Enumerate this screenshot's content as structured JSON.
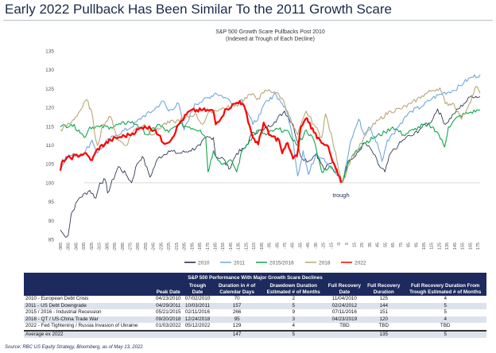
{
  "title": "Early 2022 Pullback Has Been Similar To the 2011 Growth Scare",
  "chart_data": {
    "type": "line",
    "title": "S&P 500 Growth  Scare Pullbacks Post 2010",
    "subtitle": "(Indexed at Trough of Each Decline)",
    "annotation": "trough",
    "xlabel": "",
    "ylabel": "",
    "xlim": [
      -365,
      178
    ],
    "ylim": [
      85,
      135
    ],
    "yticks": [
      85,
      90,
      95,
      100,
      105,
      110,
      115,
      120,
      125,
      130,
      135
    ],
    "xticks_start": -365,
    "xticks_end": 175,
    "xticks_step": 10,
    "reference_line": 100,
    "legend_position": "bottom",
    "series": [
      {
        "name": "2010",
        "color": "#1b2440",
        "width": 0.8,
        "points": [
          [
            -365,
            87.5
          ],
          [
            -360,
            86
          ],
          [
            -355,
            86
          ],
          [
            -351,
            91.7
          ],
          [
            -341,
            95.9
          ],
          [
            -327,
            98
          ],
          [
            -319,
            95.9
          ],
          [
            -314,
            100
          ],
          [
            -307,
            100.8
          ],
          [
            -304,
            97.3
          ],
          [
            -290,
            104.3
          ],
          [
            -280,
            102.2
          ],
          [
            -273,
            100
          ],
          [
            -266,
            105
          ],
          [
            -259,
            107
          ],
          [
            -249,
            101.5
          ],
          [
            -239,
            106.4
          ],
          [
            -225,
            108.5
          ],
          [
            -212,
            107.8
          ],
          [
            -198,
            108.5
          ],
          [
            -184,
            109.9
          ],
          [
            -177,
            112
          ],
          [
            -167,
            112
          ],
          [
            -164,
            107
          ],
          [
            -154,
            106.4
          ],
          [
            -147,
            103.6
          ],
          [
            -137,
            107.8
          ],
          [
            -126,
            109.2
          ],
          [
            -116,
            113.4
          ],
          [
            -102,
            114
          ],
          [
            -88,
            116.2
          ],
          [
            -75,
            119
          ],
          [
            -64,
            115.5
          ],
          [
            -54,
            107
          ],
          [
            -44,
            105.7
          ],
          [
            -34,
            107.8
          ],
          [
            -24,
            103.6
          ],
          [
            -13,
            105.7
          ],
          [
            -3,
            101.5
          ],
          [
            0,
            100
          ],
          [
            7,
            105.7
          ],
          [
            17,
            107
          ],
          [
            28,
            110.6
          ],
          [
            38,
            108.5
          ],
          [
            48,
            104.3
          ],
          [
            55,
            102.9
          ],
          [
            62,
            107.8
          ],
          [
            72,
            109.9
          ],
          [
            82,
            112
          ],
          [
            92,
            112.7
          ],
          [
            103,
            114.8
          ],
          [
            113,
            115.8
          ],
          [
            123,
            119.6
          ],
          [
            133,
            115.5
          ],
          [
            144,
            118.3
          ],
          [
            157,
            121
          ],
          [
            167,
            123.1
          ],
          [
            178,
            122.8
          ]
        ]
      },
      {
        "name": "2011",
        "color": "#6fa8e0",
        "width": 1.1,
        "points": [
          [
            -365,
            103.2
          ],
          [
            -358,
            107
          ],
          [
            -334,
            107.8
          ],
          [
            -324,
            111.3
          ],
          [
            -317,
            107.8
          ],
          [
            -307,
            110.6
          ],
          [
            -293,
            112.7
          ],
          [
            -273,
            114.8
          ],
          [
            -259,
            117.5
          ],
          [
            -246,
            119
          ],
          [
            -232,
            121.7
          ],
          [
            -225,
            119
          ],
          [
            -212,
            121
          ],
          [
            -205,
            114
          ],
          [
            -191,
            121
          ],
          [
            -181,
            121.7
          ],
          [
            -164,
            123.8
          ],
          [
            -150,
            122.4
          ],
          [
            -140,
            121
          ],
          [
            -130,
            122.1
          ],
          [
            -116,
            115.5
          ],
          [
            -106,
            118.3
          ],
          [
            -99,
            121.7
          ],
          [
            -95,
            121.7
          ],
          [
            -88,
            123.8
          ],
          [
            -78,
            121
          ],
          [
            -71,
            118.3
          ],
          [
            -64,
            111.3
          ],
          [
            -58,
            101.8
          ],
          [
            -51,
            108.5
          ],
          [
            -44,
            102.2
          ],
          [
            -34,
            107.8
          ],
          [
            -24,
            106.4
          ],
          [
            -13,
            103.6
          ],
          [
            -3,
            100.8
          ],
          [
            0,
            100
          ],
          [
            11,
            111.3
          ],
          [
            21,
            116.9
          ],
          [
            28,
            112.7
          ],
          [
            34,
            114.8
          ],
          [
            45,
            110.6
          ],
          [
            51,
            105.7
          ],
          [
            58,
            111.3
          ],
          [
            69,
            114
          ],
          [
            79,
            116.9
          ],
          [
            89,
            119
          ],
          [
            103,
            120.3
          ],
          [
            116,
            122.4
          ],
          [
            130,
            123.8
          ],
          [
            144,
            124.5
          ],
          [
            157,
            126.6
          ],
          [
            167,
            128
          ],
          [
            178,
            128.7
          ]
        ]
      },
      {
        "name": "2015/2016",
        "color": "#12a44a",
        "width": 1.1,
        "points": [
          [
            -365,
            114.8
          ],
          [
            -351,
            115.5
          ],
          [
            -341,
            114
          ],
          [
            -334,
            112
          ],
          [
            -327,
            114.8
          ],
          [
            -314,
            114.8
          ],
          [
            -300,
            114.8
          ],
          [
            -287,
            115.5
          ],
          [
            -276,
            116.2
          ],
          [
            -266,
            115.5
          ],
          [
            -252,
            112.7
          ],
          [
            -239,
            115.5
          ],
          [
            -225,
            113.4
          ],
          [
            -212,
            115.5
          ],
          [
            -198,
            114.8
          ],
          [
            -184,
            114
          ],
          [
            -177,
            112
          ],
          [
            -174,
            102.9
          ],
          [
            -167,
            108.5
          ],
          [
            -157,
            105
          ],
          [
            -143,
            105.7
          ],
          [
            -137,
            102.9
          ],
          [
            -130,
            108.5
          ],
          [
            -120,
            111.3
          ],
          [
            -109,
            114
          ],
          [
            -99,
            112.7
          ],
          [
            -88,
            114
          ],
          [
            -75,
            114
          ],
          [
            -68,
            112.7
          ],
          [
            -58,
            109.9
          ],
          [
            -47,
            114
          ],
          [
            -37,
            111.3
          ],
          [
            -27,
            102.9
          ],
          [
            -17,
            104.3
          ],
          [
            -7,
            102.9
          ],
          [
            -1,
            100
          ],
          [
            7,
            105
          ],
          [
            17,
            108.5
          ],
          [
            28,
            110.6
          ],
          [
            41,
            112
          ],
          [
            55,
            113.4
          ],
          [
            65,
            114.8
          ],
          [
            79,
            112.7
          ],
          [
            92,
            114
          ],
          [
            106,
            115.5
          ],
          [
            116,
            114.8
          ],
          [
            123,
            113.4
          ],
          [
            132,
            109.5
          ],
          [
            137,
            114.8
          ],
          [
            150,
            117.6
          ],
          [
            164,
            118.6
          ],
          [
            178,
            119.3
          ]
        ]
      },
      {
        "name": "2018",
        "color": "#b9a77a",
        "width": 1.1,
        "points": [
          [
            -365,
            114
          ],
          [
            -351,
            116
          ],
          [
            -338,
            119.6
          ],
          [
            -331,
            122.1
          ],
          [
            -324,
            118.3
          ],
          [
            -321,
            113.4
          ],
          [
            -317,
            109.9
          ],
          [
            -310,
            115.5
          ],
          [
            -300,
            117.5
          ],
          [
            -290,
            111.3
          ],
          [
            -280,
            109.9
          ],
          [
            -270,
            114
          ],
          [
            -256,
            115.5
          ],
          [
            -246,
            112.7
          ],
          [
            -232,
            115.5
          ],
          [
            -218,
            116.2
          ],
          [
            -205,
            116.9
          ],
          [
            -191,
            118.3
          ],
          [
            -181,
            115.5
          ],
          [
            -171,
            119
          ],
          [
            -157,
            119.6
          ],
          [
            -140,
            120.3
          ],
          [
            -130,
            121.7
          ],
          [
            -120,
            123.5
          ],
          [
            -109,
            122.4
          ],
          [
            -99,
            124.5
          ],
          [
            -102,
            123.8
          ],
          [
            -88,
            124.2
          ],
          [
            -78,
            122.4
          ],
          [
            -71,
            119
          ],
          [
            -64,
            114.8
          ],
          [
            -58,
            112.7
          ],
          [
            -47,
            119
          ],
          [
            -37,
            115.5
          ],
          [
            -27,
            112
          ],
          [
            -22,
            118.3
          ],
          [
            -13,
            111.3
          ],
          [
            -7,
            105.7
          ],
          [
            0,
            100
          ],
          [
            11,
            106.4
          ],
          [
            21,
            109.2
          ],
          [
            34,
            114
          ],
          [
            48,
            116.9
          ],
          [
            62,
            119
          ],
          [
            75,
            119.6
          ],
          [
            89,
            121
          ],
          [
            103,
            123.1
          ],
          [
            116,
            124.5
          ],
          [
            126,
            125.2
          ],
          [
            133,
            121
          ],
          [
            144,
            121
          ],
          [
            154,
            116.9
          ],
          [
            164,
            121
          ],
          [
            173,
            125.6
          ],
          [
            178,
            123.8
          ]
        ]
      },
      {
        "name": "2022",
        "color": "#ff0000",
        "width": 2.2,
        "points": [
          [
            -365,
            103.2
          ],
          [
            -362,
            106
          ],
          [
            -334,
            107.8
          ],
          [
            -324,
            106
          ],
          [
            -317,
            109
          ],
          [
            -300,
            111.3
          ],
          [
            -290,
            112
          ],
          [
            -276,
            112.7
          ],
          [
            -256,
            115
          ],
          [
            -242,
            114
          ],
          [
            -232,
            110.6
          ],
          [
            -222,
            111.3
          ],
          [
            -212,
            115.5
          ],
          [
            -198,
            119
          ],
          [
            -181,
            119.3
          ],
          [
            -167,
            119
          ],
          [
            -164,
            115.5
          ],
          [
            -150,
            119.6
          ],
          [
            -133,
            121.7
          ],
          [
            -126,
            119.6
          ],
          [
            -116,
            112
          ],
          [
            -109,
            110.2
          ],
          [
            -102,
            116
          ],
          [
            -95,
            112.7
          ],
          [
            -82,
            111.3
          ],
          [
            -78,
            107.8
          ],
          [
            -71,
            110.6
          ],
          [
            -64,
            106.4
          ],
          [
            -59,
            107
          ],
          [
            -54,
            114.8
          ],
          [
            -46,
            117.2
          ],
          [
            -37,
            113.4
          ],
          [
            -29,
            111.3
          ],
          [
            -20,
            110
          ],
          [
            -13,
            105.7
          ],
          [
            -7,
            102.9
          ],
          [
            -2,
            100
          ]
        ]
      }
    ]
  },
  "table": {
    "title": "S&P 500 Performance With Major Growth Scare Declines",
    "headers": [
      "",
      "Peak Date",
      "Trough Date",
      "Duration in # of Calendar Days",
      "Drawdown Duration Estimated # of Months",
      "Full Recovery Date",
      "Full Recovery Duration",
      "Full Recovery Duration From Trough Estimated # of Months"
    ],
    "rows": [
      [
        "2010 - European Debt Crisis",
        "04/23/2010",
        "07/02/2010",
        "70",
        "2",
        "11/04/2010",
        "125",
        "4"
      ],
      [
        "2011 - US Debt Downgrade",
        "04/29/2011",
        "10/03/2011",
        "157",
        "5",
        "02/24/2012",
        "144",
        "5"
      ],
      [
        "2015 / 2016 - Industrial Recession",
        "05/21/2015",
        "02/11/2016",
        "266",
        "9",
        "07/11/2016",
        "151",
        "5"
      ],
      [
        "2018 - QT / US-China Trade War",
        "09/20/2018",
        "12/24/2018",
        "95",
        "3",
        "04/23/2019",
        "120",
        "4"
      ],
      [
        "2022 - Fed Tightening / Russia Invasion of Ukraine",
        "01/03/2022",
        "05/12/2022",
        "129",
        "4",
        "TBD",
        "TBD",
        "TBD"
      ]
    ],
    "average": [
      "Average ex 2022",
      "",
      "",
      "147",
      "5",
      "",
      "135",
      "5"
    ]
  },
  "source": "Source: RBC US Equity Strategy, Bloomberg, as of May 13, 2022"
}
